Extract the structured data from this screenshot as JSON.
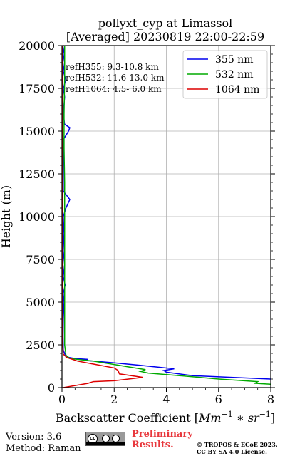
{
  "chart_data": {
    "type": "line",
    "title_line1": "pollyxt_cyp at Limassol",
    "title_line2": "[Averaged] 20230819 22:00-22:59",
    "xlabel_text": "Backscatter Coefficient [",
    "xlabel_unit": "Mm",
    "xlabel_exp1": "−1",
    "xlabel_mid": " ∗ sr",
    "xlabel_exp2": "−1",
    "xlabel_end": "]",
    "ylabel": "Height (m)",
    "xlim": [
      0,
      8
    ],
    "ylim": [
      0,
      20000
    ],
    "xticks": [
      0,
      2,
      4,
      6,
      8
    ],
    "yticks": [
      0,
      2500,
      5000,
      7500,
      10000,
      12500,
      15000,
      17500,
      20000
    ],
    "grid": true,
    "legend_position": "top-right",
    "annotations": [
      "refH355:  9.3-10.8 km",
      "refH532: 11.6-13.0 km",
      "refH1064:  4.5- 6.0 km"
    ],
    "series": [
      {
        "name": "355 nm",
        "color": "#0000ee",
        "points": [
          [
            8.0,
            500
          ],
          [
            5.0,
            700
          ],
          [
            4.0,
            900
          ],
          [
            3.9,
            1000
          ],
          [
            4.3,
            1100
          ],
          [
            3.0,
            1300
          ],
          [
            2.0,
            1450
          ],
          [
            1.2,
            1550
          ],
          [
            0.8,
            1600
          ],
          [
            1.0,
            1650
          ],
          [
            0.5,
            1700
          ],
          [
            0.15,
            1800
          ],
          [
            0.05,
            2200
          ],
          [
            0.04,
            3000
          ],
          [
            0.05,
            4000
          ],
          [
            0.08,
            5000
          ],
          [
            0.05,
            5500
          ],
          [
            0.12,
            6000
          ],
          [
            0.05,
            6500
          ],
          [
            0.1,
            7200
          ],
          [
            0.05,
            8000
          ],
          [
            0.08,
            9000
          ],
          [
            0.05,
            10000
          ],
          [
            0.15,
            10500
          ],
          [
            0.3,
            11000
          ],
          [
            0.2,
            11200
          ],
          [
            0.05,
            11500
          ],
          [
            0.05,
            12500
          ],
          [
            0.05,
            13500
          ],
          [
            0.05,
            14500
          ],
          [
            0.25,
            15000
          ],
          [
            0.3,
            15200
          ],
          [
            0.1,
            15400
          ],
          [
            0.05,
            16000
          ],
          [
            0.1,
            17000
          ],
          [
            0.05,
            17500
          ],
          [
            0.15,
            18000
          ],
          [
            0.05,
            18500
          ],
          [
            0.1,
            19000
          ],
          [
            0.05,
            19500
          ],
          [
            0.1,
            20000
          ]
        ]
      },
      {
        "name": "532 nm",
        "color": "#00aa00",
        "points": [
          [
            8.0,
            200
          ],
          [
            7.4,
            250
          ],
          [
            7.5,
            350
          ],
          [
            6.0,
            500
          ],
          [
            4.5,
            700
          ],
          [
            3.3,
            850
          ],
          [
            3.0,
            950
          ],
          [
            3.2,
            1050
          ],
          [
            2.6,
            1200
          ],
          [
            1.8,
            1400
          ],
          [
            1.2,
            1550
          ],
          [
            0.3,
            1700
          ],
          [
            0.15,
            1900
          ],
          [
            0.1,
            2500
          ],
          [
            0.1,
            4000
          ],
          [
            0.1,
            6000
          ],
          [
            0.1,
            8000
          ],
          [
            0.1,
            10000
          ],
          [
            0.1,
            12000
          ],
          [
            0.08,
            14000
          ],
          [
            0.08,
            16000
          ],
          [
            0.1,
            18000
          ],
          [
            0.1,
            20000
          ]
        ]
      },
      {
        "name": "1064 nm",
        "color": "#dd0000",
        "points": [
          [
            0.05,
            0
          ],
          [
            1.0,
            250
          ],
          [
            1.2,
            350
          ],
          [
            2.0,
            400
          ],
          [
            3.1,
            600
          ],
          [
            2.2,
            800
          ],
          [
            2.15,
            1000
          ],
          [
            2.0,
            1150
          ],
          [
            1.3,
            1350
          ],
          [
            0.6,
            1550
          ],
          [
            0.2,
            1750
          ],
          [
            0.05,
            1950
          ],
          [
            0.03,
            2500
          ],
          [
            0.03,
            4000
          ],
          [
            0.03,
            6000
          ],
          [
            0.03,
            8000
          ],
          [
            0.03,
            10000
          ],
          [
            0.03,
            12000
          ],
          [
            0.03,
            14000
          ],
          [
            0.03,
            16000
          ],
          [
            0.03,
            18000
          ],
          [
            0.03,
            20000
          ]
        ]
      }
    ]
  },
  "footer": {
    "version": "Version: 3.6",
    "method": "Method: Raman",
    "preliminary_line1": "Preliminary",
    "preliminary_line2": "Results.",
    "copyright_line1": "© TROPOS & ECoE 2023.",
    "copyright_line2": "CC BY SA 4.0 License.",
    "badge_text": "cc"
  }
}
